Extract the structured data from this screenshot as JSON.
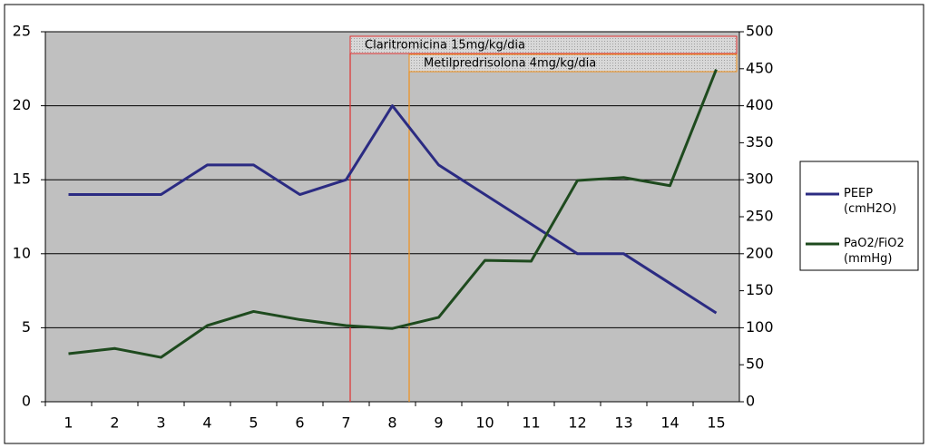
{
  "chart_data": {
    "type": "line",
    "categories": [
      "1",
      "2",
      "3",
      "4",
      "5",
      "6",
      "7",
      "8",
      "9",
      "10",
      "11",
      "12",
      "13",
      "14",
      "15"
    ],
    "series": [
      {
        "name": "PEEP (cmH2O)",
        "color": "#2b2b82",
        "values": [
          14,
          14,
          14,
          16,
          16,
          14,
          15,
          20,
          16,
          14,
          12,
          10,
          10,
          8,
          6
        ]
      },
      {
        "name": "PaO2/FiO2 (mmHg)",
        "color": "#1e4a1e",
        "axis": "y2",
        "values": [
          65,
          72,
          60,
          103,
          122,
          111,
          103,
          99,
          114,
          191,
          190,
          299,
          303,
          292,
          449
        ]
      }
    ],
    "ylim": [
      0,
      25
    ],
    "yticks": [
      0,
      5,
      10,
      15,
      20,
      25
    ],
    "y2lim": [
      0,
      500
    ],
    "y2ticks": [
      0,
      50,
      100,
      150,
      200,
      250,
      300,
      350,
      400,
      450,
      500
    ],
    "grid": true,
    "annotations": [
      "Claritromicina 15mg/kg/dia",
      "Metilpredrisolona 4mg/kg/dia"
    ]
  }
}
